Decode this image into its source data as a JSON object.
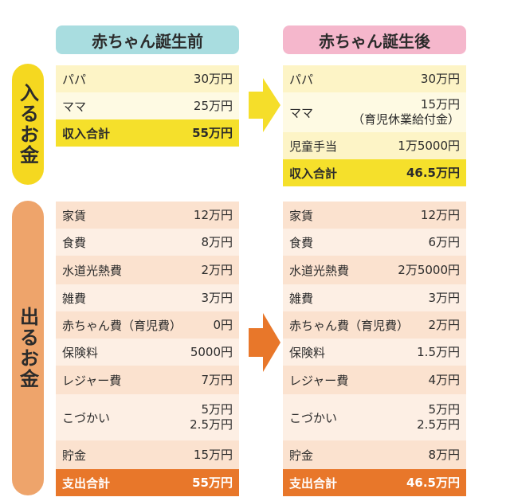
{
  "before": {
    "header": "赤ちゃん誕生前",
    "income": {
      "rows": [
        [
          "パパ",
          "30万円"
        ],
        [
          "ママ",
          "25万円"
        ]
      ],
      "total": [
        "収入合計",
        "55万円"
      ]
    },
    "expense": {
      "rows": [
        [
          "家賃",
          "12万円"
        ],
        [
          "食費",
          "8万円"
        ],
        [
          "水道光熱費",
          "2万円"
        ],
        [
          "雑費",
          "3万円"
        ],
        [
          "赤ちゃん費（育児費）",
          "0円"
        ],
        [
          "保険料",
          "5000円"
        ],
        [
          "レジャー費",
          "7万円"
        ],
        [
          "こづかい",
          "5万円",
          "2.5万円"
        ],
        [
          "貯金",
          "15万円"
        ]
      ],
      "total": [
        "支出合計",
        "55万円"
      ]
    }
  },
  "after": {
    "header": "赤ちゃん誕生後",
    "income": {
      "rows": [
        [
          "パパ",
          "30万円"
        ],
        [
          "ママ",
          "15万円",
          "（育児休業給付金）"
        ],
        [
          "児童手当",
          "1万5000円"
        ]
      ],
      "total": [
        "収入合計",
        "46.5万円"
      ]
    },
    "expense": {
      "rows": [
        [
          "家賃",
          "12万円"
        ],
        [
          "食費",
          "6万円"
        ],
        [
          "水道光熱費",
          "2万5000円"
        ],
        [
          "雑費",
          "3万円"
        ],
        [
          "赤ちゃん費（育児費）",
          "2万円"
        ],
        [
          "保険料",
          "1.5万円"
        ],
        [
          "レジャー費",
          "4万円"
        ],
        [
          "こづかい",
          "5万円",
          "2.5万円"
        ],
        [
          "貯金",
          "8万円"
        ]
      ],
      "total": [
        "支出合計",
        "46.5万円"
      ]
    }
  },
  "side_labels": {
    "income": "入るお金",
    "expense": "出るお金"
  }
}
